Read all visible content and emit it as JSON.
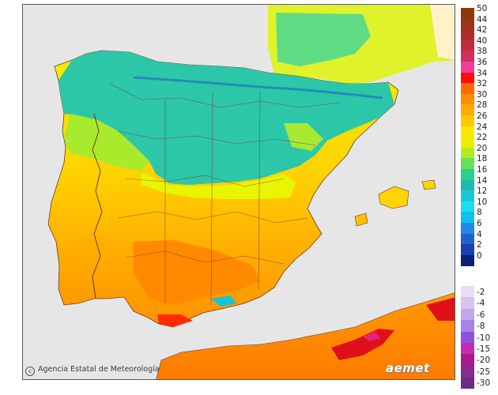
{
  "credit": "Agencia Estatal de Meteorología",
  "logo": "aemet",
  "legend": {
    "positive": [
      {
        "label": "50",
        "color": "#8b3a0e"
      },
      {
        "label": "44",
        "color": "#a0341a"
      },
      {
        "label": "42",
        "color": "#b02a2a"
      },
      {
        "label": "40",
        "color": "#c22c3f"
      },
      {
        "label": "38",
        "color": "#d42f5c"
      },
      {
        "label": "36",
        "color": "#ef3f97"
      },
      {
        "label": "34",
        "color": "#ff0b0b"
      },
      {
        "label": "32",
        "color": "#ff6a00"
      },
      {
        "label": "30",
        "color": "#ff8e00"
      },
      {
        "label": "28",
        "color": "#ffab00"
      },
      {
        "label": "26",
        "color": "#ffc800"
      },
      {
        "label": "24",
        "color": "#ffe800"
      },
      {
        "label": "22",
        "color": "#e8f000"
      },
      {
        "label": "20",
        "color": "#b2ec1b"
      },
      {
        "label": "18",
        "color": "#66e058"
      },
      {
        "label": "16",
        "color": "#2ccf90"
      },
      {
        "label": "14",
        "color": "#1eb9b0"
      },
      {
        "label": "12",
        "color": "#19c8d2"
      },
      {
        "label": "10",
        "color": "#16dff0"
      },
      {
        "label": "8",
        "color": "#12bdf2"
      },
      {
        "label": "6",
        "color": "#1d8ae8"
      },
      {
        "label": "4",
        "color": "#1e61d2"
      },
      {
        "label": "2",
        "color": "#1b3fb0"
      },
      {
        "label": "0",
        "color": "#0c1e78"
      }
    ],
    "negative": [
      {
        "label": "-2",
        "color": "#e9dcf5"
      },
      {
        "label": "-4",
        "color": "#d7c4f0"
      },
      {
        "label": "-6",
        "color": "#c2a8ec"
      },
      {
        "label": "-8",
        "color": "#a982e6"
      },
      {
        "label": "-10",
        "color": "#8f52df"
      },
      {
        "label": "-15",
        "color": "#c62bb0"
      },
      {
        "label": "-20",
        "color": "#a8198b"
      },
      {
        "label": "-25",
        "color": "#892a92"
      },
      {
        "label": "-30",
        "color": "#6d2c86"
      }
    ]
  }
}
